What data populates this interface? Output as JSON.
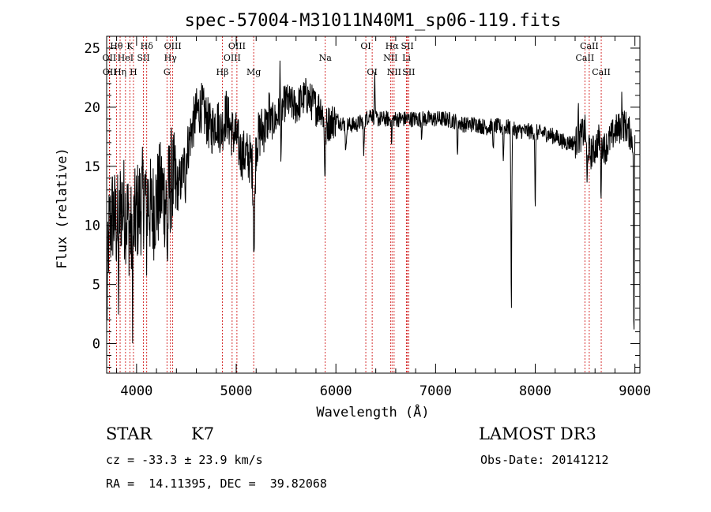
{
  "chart_data": {
    "type": "line",
    "title": "spec-57004-M31011N40M1_sp06-119.fits",
    "xlabel": "Wavelength (Å)",
    "ylabel": "Flux (relative)",
    "xlim": [
      3700,
      9050
    ],
    "ylim": [
      -2.5,
      26
    ],
    "xticks": [
      4000,
      5000,
      6000,
      7000,
      8000,
      9000
    ],
    "yticks": [
      0,
      5,
      10,
      15,
      20,
      25
    ],
    "spectrum_anchors": {
      "x": [
        3700,
        3720,
        3760,
        3800,
        3850,
        3900,
        3950,
        4000,
        4050,
        4100,
        4150,
        4200,
        4250,
        4300,
        4350,
        4400,
        4450,
        4500,
        4550,
        4600,
        4650,
        4700,
        4750,
        4800,
        4850,
        4900,
        4950,
        5000,
        5050,
        5100,
        5150,
        5180,
        5200,
        5250,
        5300,
        5400,
        5500,
        5600,
        5700,
        5800,
        5850,
        5900,
        6000,
        6100,
        6200,
        6300,
        6350,
        6400,
        6500,
        6600,
        6700,
        6800,
        6900,
        7000,
        7100,
        7200,
        7300,
        7400,
        7500,
        7600,
        7700,
        7750,
        7800,
        7900,
        8000,
        8100,
        8200,
        8300,
        8400,
        8500,
        8550,
        8600,
        8650,
        8700,
        8800,
        8900,
        9000
      ],
      "y": [
        2,
        9,
        11,
        10,
        12,
        11,
        9,
        11,
        12,
        13,
        11,
        12,
        13,
        12,
        14,
        13,
        14,
        16,
        18,
        19.5,
        20,
        19,
        18,
        19,
        18,
        19.5,
        18,
        17.5,
        16,
        16,
        15.5,
        14,
        17,
        18,
        18.5,
        19,
        20.5,
        20,
        21,
        20,
        20,
        18.5,
        19,
        18.5,
        18.5,
        19,
        19.5,
        19,
        19,
        19,
        19,
        19,
        19,
        19,
        19,
        18.8,
        18.5,
        18.6,
        18.3,
        18.4,
        18.3,
        18.3,
        18,
        18,
        17.9,
        17.8,
        17.5,
        17,
        17,
        18,
        16,
        16.5,
        17.5,
        16.5,
        18,
        18.5,
        17
      ]
    },
    "absorption_dips": [
      {
        "x": 7760,
        "depth": 15,
        "width": 6
      },
      {
        "x": 7680,
        "depth": 3,
        "width": 5
      },
      {
        "x": 8000,
        "depth": 7,
        "width": 5
      },
      {
        "x": 5180,
        "depth": 6,
        "width": 10
      },
      {
        "x": 5450,
        "depth": 3,
        "width": 8
      },
      {
        "x": 5890,
        "depth": 4,
        "width": 8
      },
      {
        "x": 6100,
        "depth": 2.5,
        "width": 6
      },
      {
        "x": 6280,
        "depth": 3,
        "width": 6
      },
      {
        "x": 7220,
        "depth": 3,
        "width": 5
      },
      {
        "x": 7580,
        "depth": 2.5,
        "width": 5
      },
      {
        "x": 8520,
        "depth": 4,
        "width": 6
      },
      {
        "x": 8660,
        "depth": 4,
        "width": 6
      },
      {
        "x": 8990,
        "depth": 17,
        "width": 5
      },
      {
        "x": 4310,
        "depth": 5,
        "width": 6
      },
      {
        "x": 3820,
        "depth": 6,
        "width": 6
      },
      {
        "x": 3960,
        "depth": 5,
        "width": 6
      },
      {
        "x": 4100,
        "depth": 4,
        "width": 6
      },
      {
        "x": 4490,
        "depth": 2,
        "width": 5
      },
      {
        "x": 6560,
        "depth": 2,
        "width": 5
      },
      {
        "x": 6860,
        "depth": 1.5,
        "width": 4
      }
    ],
    "emission_spikes": [
      {
        "x": 6390,
        "height": 4,
        "width": 4
      },
      {
        "x": 5440,
        "height": 4,
        "width": 4
      },
      {
        "x": 5330,
        "height": 3,
        "width": 4
      },
      {
        "x": 8430,
        "height": 3,
        "width": 4
      },
      {
        "x": 8870,
        "height": 3,
        "width": 4
      }
    ],
    "line_markers": [
      {
        "label": "Hθ",
        "x": 3798,
        "row": 1
      },
      {
        "label": "OII",
        "x": 3727,
        "row": 2
      },
      {
        "label": "OII",
        "x": 3730,
        "row": 3
      },
      {
        "label": "K",
        "x": 3934,
        "row": 1
      },
      {
        "label": "HeI",
        "x": 3889,
        "row": 2
      },
      {
        "label": "Hη",
        "x": 3835,
        "row": 3
      },
      {
        "label": "SII",
        "x": 4069,
        "row": 2
      },
      {
        "label": "H",
        "x": 3969,
        "row": 3
      },
      {
        "label": "Hδ",
        "x": 4102,
        "row": 1
      },
      {
        "label": "OIII",
        "x": 4363,
        "row": 1
      },
      {
        "label": "Hγ",
        "x": 4340,
        "row": 2
      },
      {
        "label": "G",
        "x": 4305,
        "row": 3
      },
      {
        "label": "Hβ",
        "x": 4861,
        "row": 3
      },
      {
        "label": "OIII",
        "x": 5007,
        "row": 1
      },
      {
        "label": "OIII",
        "x": 4959,
        "row": 2
      },
      {
        "label": "Mg",
        "x": 5175,
        "row": 3
      },
      {
        "label": "Na",
        "x": 5893,
        "row": 2
      },
      {
        "label": "OI",
        "x": 6300,
        "row": 1
      },
      {
        "label": "OI",
        "x": 6364,
        "row": 3
      },
      {
        "label": "Hα",
        "x": 6563,
        "row": 1
      },
      {
        "label": "NII",
        "x": 6548,
        "row": 2
      },
      {
        "label": "NII",
        "x": 6584,
        "row": 3
      },
      {
        "label": "SII",
        "x": 6717,
        "row": 1
      },
      {
        "label": "Li",
        "x": 6708,
        "row": 2
      },
      {
        "label": "SII",
        "x": 6731,
        "row": 3
      },
      {
        "label": "CaII",
        "x": 8542,
        "row": 1
      },
      {
        "label": "CaII",
        "x": 8498,
        "row": 2
      },
      {
        "label": "CaII",
        "x": 8662,
        "row": 3
      }
    ]
  },
  "info": {
    "object_class": "STAR",
    "subclass": "K7",
    "survey": "LAMOST DR3",
    "redshift": "cz = -33.3 ± 23.9 km/s",
    "obs_date": "Obs-Date: 20141212",
    "coords": "RA =  14.11395, DEC =  39.82068"
  },
  "colors": {
    "axis": "#000000",
    "spectrum": "#000000",
    "line_marker": "#cc0000",
    "background": "#ffffff"
  }
}
